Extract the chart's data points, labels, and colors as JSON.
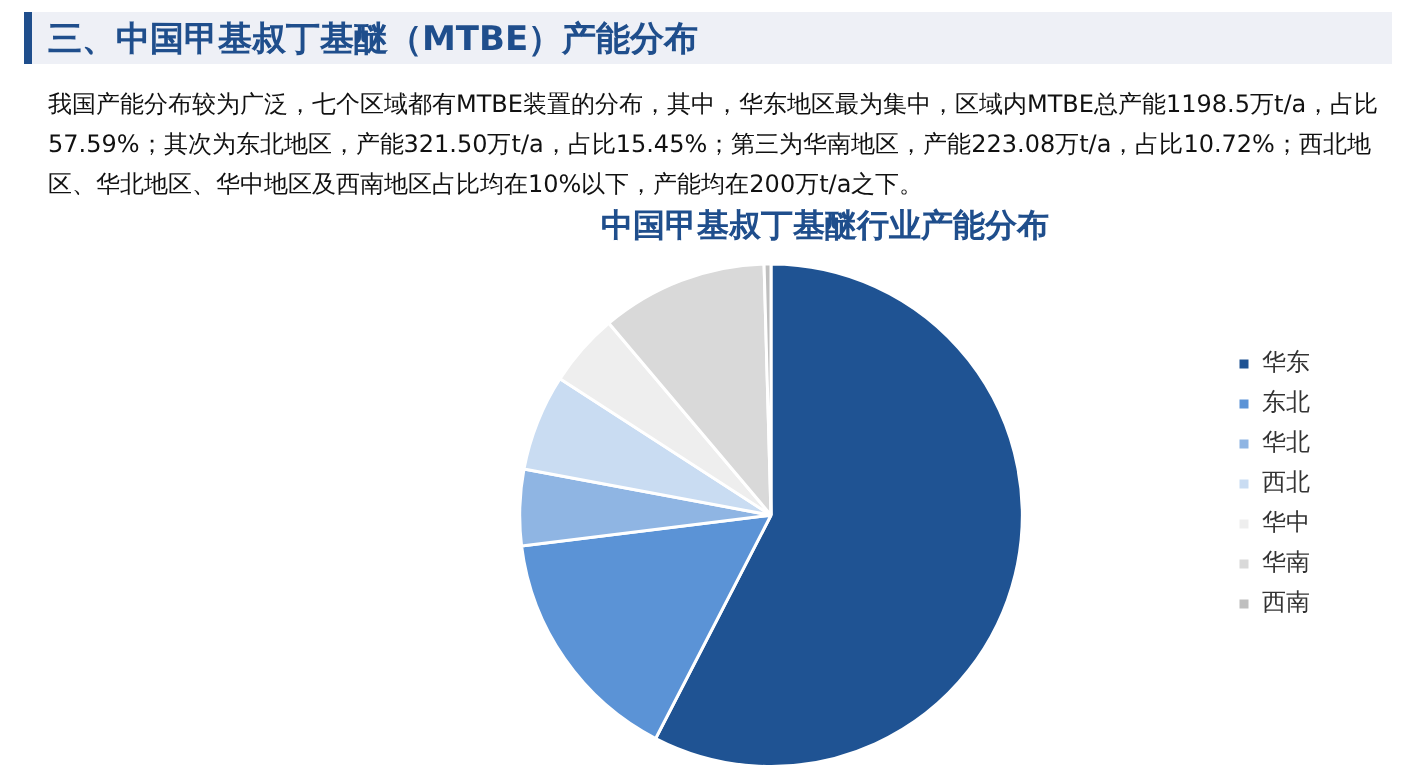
{
  "chart_data": {
    "type": "pie",
    "title": "中国甲基叔丁基醚行业产能分布",
    "subtitle": "三、中国甲基叔丁基醚（MTBE）产能分布",
    "annotations": [
      "我国产能分布较为广泛，七个区域都有MTBE装置的分布，其中，华东地区最为集中，区域内MTBE总产能1198.5万t/a，占比57.59%；其次为东北地区，产能321.50万t/a，占比15.45%；第三为华南地区，产能223.08万t/a，占比10.72%；西北地区、华北地区、华中地区及西南地区占比均在10%以下，产能均在200万t/a之下。"
    ],
    "categories": [
      "华东",
      "东北",
      "华北",
      "西北",
      "华中",
      "华南",
      "西南"
    ],
    "values": [
      57.59,
      15.45,
      4.9,
      6.2,
      4.7,
      10.72,
      0.44
    ],
    "colors": [
      "#1f5393",
      "#5b93d6",
      "#8fb5e3",
      "#c9dcf2",
      "#eeeeee",
      "#d9d9d9",
      "#bfbfbf"
    ],
    "legend": "right"
  }
}
